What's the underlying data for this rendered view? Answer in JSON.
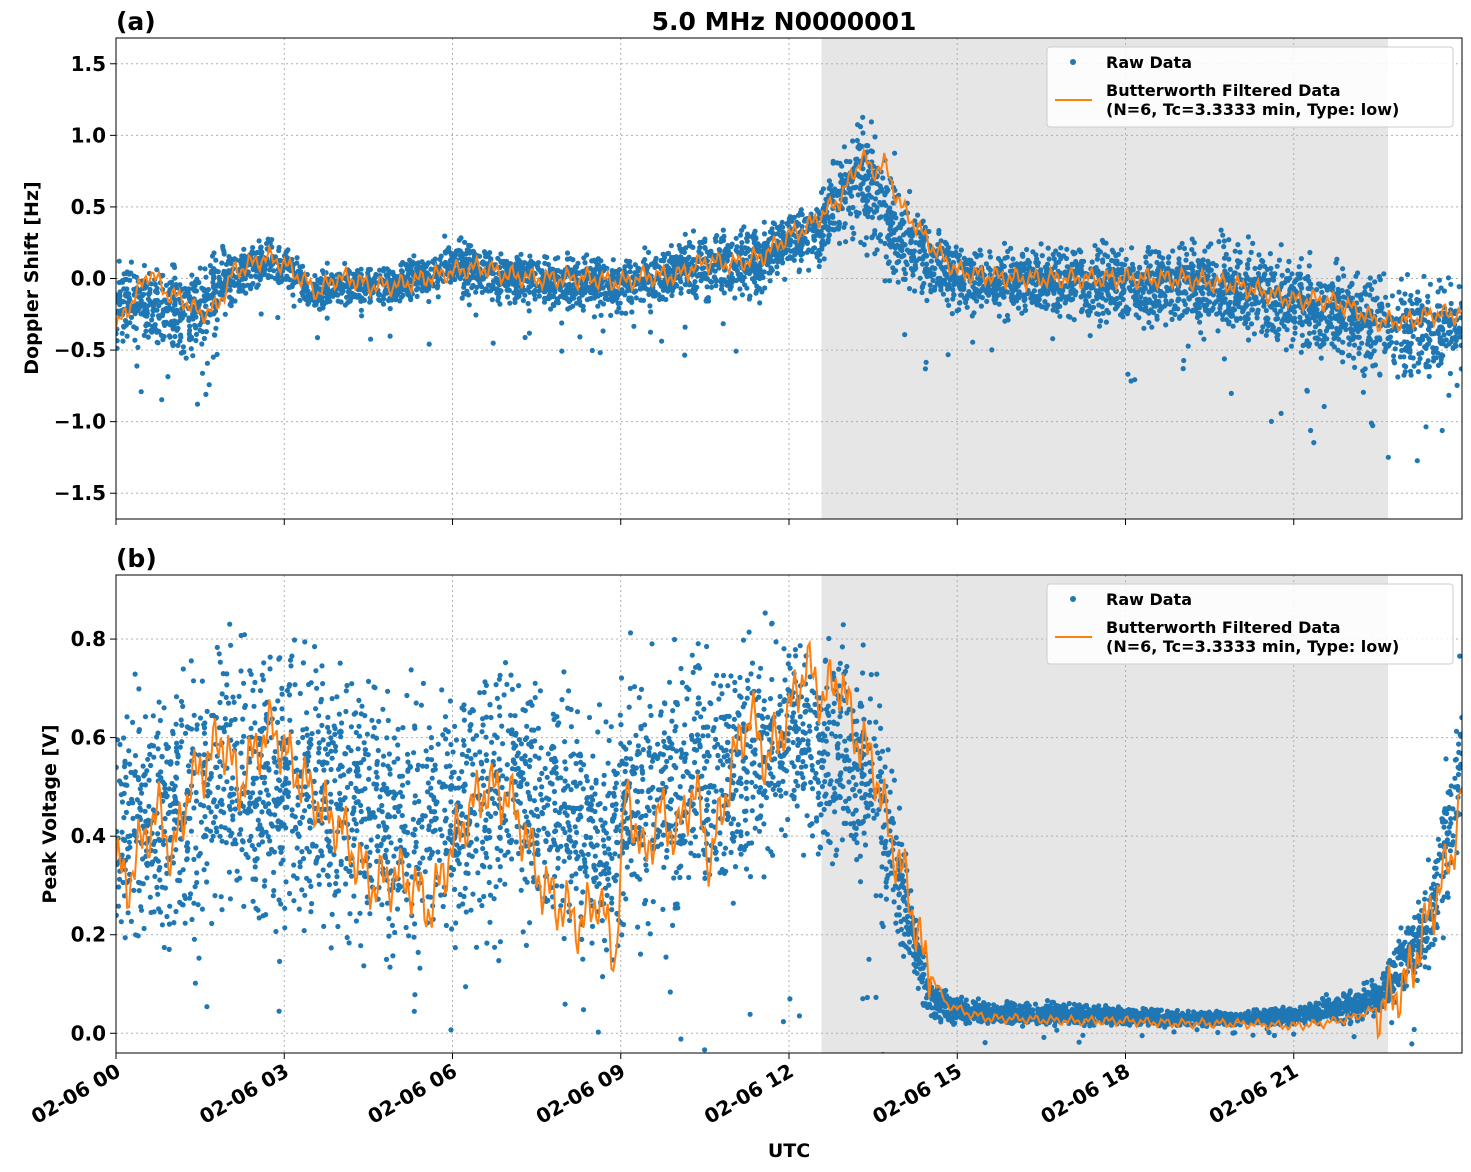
{
  "figure": {
    "title": "5.0 MHz N0000001",
    "xlabel": "UTC"
  },
  "colors": {
    "raw": "#1f77b4",
    "filtered": "#ff7f0e",
    "night_shade": "#e6e6e6",
    "grid": "#b0b0b0"
  },
  "chart_data": [
    {
      "type": "scatter",
      "panel_label": "(a)",
      "title": "5.0 MHz N0000001",
      "ylabel": "Doppler Shift [Hz]",
      "xlabel": "",
      "xlim": [
        0,
        24
      ],
      "ylim": [
        -1.68,
        1.68
      ],
      "yticks": [
        1.5,
        1.0,
        0.5,
        0.0,
        -0.5,
        -1.0,
        -1.5
      ],
      "ytick_labels": [
        "1.5",
        "1.0",
        "0.5",
        "0.0",
        "−0.5",
        "−1.0",
        "−1.5"
      ],
      "xticks": [
        0,
        3,
        6,
        9,
        12,
        15,
        18,
        21
      ],
      "grid": true,
      "legend_position": "top-right",
      "shaded_interval_hours": [
        12.58,
        22.68
      ],
      "series": [
        {
          "name": "Raw Data",
          "kind": "scatter",
          "band_hours": [
            0,
            0.5,
            1,
            1.5,
            2,
            2.5,
            3,
            3.5,
            4,
            5,
            6,
            7,
            8,
            9,
            10,
            11,
            11.5,
            12,
            12.5,
            13,
            13.3,
            13.5,
            14,
            14.5,
            15,
            16,
            17,
            18,
            19,
            20,
            21,
            22,
            23,
            24
          ],
          "band_low": [
            -0.6,
            -0.5,
            -0.7,
            -0.6,
            -0.3,
            -0.1,
            -0.1,
            -0.3,
            -0.25,
            -0.25,
            -0.2,
            -0.25,
            -0.3,
            -0.3,
            -0.25,
            -0.25,
            -0.2,
            0.0,
            0.0,
            0.2,
            0.1,
            0.0,
            -0.2,
            -0.3,
            -0.3,
            -0.35,
            -0.35,
            -0.4,
            -0.4,
            -0.55,
            -0.65,
            -0.75,
            -0.85,
            -0.8
          ],
          "band_high": [
            0.2,
            0.15,
            0.2,
            0.15,
            0.3,
            0.3,
            0.3,
            0.1,
            0.15,
            0.15,
            0.35,
            0.25,
            0.25,
            0.2,
            0.35,
            0.45,
            0.45,
            0.5,
            0.65,
            1.1,
            1.3,
            1.2,
            0.8,
            0.5,
            0.3,
            0.3,
            0.3,
            0.3,
            0.35,
            0.4,
            0.3,
            0.2,
            0.1,
            0.1
          ]
        },
        {
          "name": "Butterworth Filtered Data\n(N=6, Tc=3.3333 min, Type: low)",
          "kind": "line",
          "x": [
            0,
            0.3,
            0.6,
            0.9,
            1.2,
            1.5,
            1.8,
            2.1,
            2.4,
            2.7,
            3.0,
            3.3,
            3.6,
            3.9,
            4.2,
            4.5,
            5.0,
            5.5,
            6.0,
            6.5,
            7.0,
            7.5,
            8.0,
            8.5,
            9.0,
            9.5,
            10.0,
            10.5,
            11.0,
            11.5,
            12.0,
            12.3,
            12.6,
            12.9,
            13.1,
            13.3,
            13.5,
            13.7,
            14.0,
            14.3,
            14.6,
            15.0,
            15.5,
            16.0,
            17.0,
            18.0,
            19.0,
            20.0,
            20.5,
            21.0,
            21.5,
            22.0,
            22.5,
            23.0,
            23.5,
            24.0
          ],
          "y": [
            -0.35,
            -0.15,
            0.05,
            -0.1,
            -0.15,
            -0.25,
            -0.2,
            0.05,
            0.1,
            0.15,
            0.1,
            0.0,
            -0.1,
            0.0,
            0.0,
            -0.05,
            -0.05,
            0.0,
            0.05,
            0.08,
            0.02,
            0.0,
            0.0,
            0.0,
            -0.03,
            0.02,
            0.02,
            0.12,
            0.1,
            0.15,
            0.3,
            0.35,
            0.45,
            0.55,
            0.7,
            0.85,
            0.75,
            0.8,
            0.5,
            0.35,
            0.2,
            0.05,
            0.02,
            0.0,
            0.0,
            0.0,
            0.0,
            -0.05,
            -0.1,
            -0.15,
            -0.15,
            -0.2,
            -0.3,
            -0.3,
            -0.25,
            -0.25
          ]
        }
      ]
    },
    {
      "type": "scatter",
      "panel_label": "(b)",
      "title": "",
      "ylabel": "Peak Voltage [V]",
      "xlabel": "UTC",
      "xlim": [
        0,
        24
      ],
      "ylim": [
        -0.04,
        0.93
      ],
      "yticks": [
        0.0,
        0.2,
        0.4,
        0.6,
        0.8
      ],
      "ytick_labels": [
        "0.0",
        "0.2",
        "0.4",
        "0.6",
        "0.8"
      ],
      "xticks": [
        0,
        3,
        6,
        9,
        12,
        15,
        18,
        21
      ],
      "xtick_labels": [
        "02-06 00",
        "02-06 03",
        "02-06 06",
        "02-06 09",
        "02-06 12",
        "02-06 15",
        "02-06 18",
        "02-06 21"
      ],
      "grid": true,
      "legend_position": "top-right",
      "shaded_interval_hours": [
        12.58,
        22.68
      ],
      "series": [
        {
          "name": "Raw Data",
          "kind": "scatter",
          "band_hours": [
            0,
            1,
            2,
            3,
            4,
            5,
            6,
            7,
            8,
            8.8,
            9.0,
            10,
            11,
            12,
            13,
            13.5,
            14,
            14.5,
            15,
            16,
            17,
            18,
            19,
            20,
            21,
            22,
            22.5,
            23,
            23.5,
            24
          ],
          "band_low": [
            0.1,
            0.1,
            0.15,
            0.1,
            0.1,
            0.07,
            0.1,
            0.12,
            0.1,
            0.04,
            0.1,
            0.1,
            0.2,
            0.3,
            0.3,
            0.2,
            0.1,
            0.02,
            0.01,
            0.01,
            0.01,
            0.01,
            0.01,
            0.01,
            0.01,
            0.01,
            0.02,
            0.03,
            0.1,
            0.3
          ],
          "band_high": [
            0.75,
            0.8,
            0.87,
            0.87,
            0.86,
            0.75,
            0.8,
            0.85,
            0.8,
            0.7,
            0.85,
            0.88,
            0.88,
            0.88,
            0.88,
            0.8,
            0.5,
            0.12,
            0.08,
            0.07,
            0.07,
            0.06,
            0.05,
            0.05,
            0.06,
            0.1,
            0.12,
            0.25,
            0.4,
            0.85
          ]
        },
        {
          "name": "Butterworth Filtered Data\n(N=6, Tc=3.3333 min, Type: low)",
          "kind": "line",
          "x": [
            0,
            0.2,
            0.5,
            0.8,
            1.0,
            1.3,
            1.6,
            1.9,
            2.2,
            2.5,
            2.8,
            3.1,
            3.4,
            3.7,
            4.0,
            4.3,
            4.6,
            5.0,
            5.3,
            5.6,
            6.0,
            6.3,
            6.6,
            7.0,
            7.3,
            7.6,
            8.0,
            8.3,
            8.6,
            8.9,
            9.1,
            9.4,
            9.7,
            10.0,
            10.3,
            10.6,
            11.0,
            11.3,
            11.6,
            12.0,
            12.3,
            12.6,
            12.9,
            13.2,
            13.5,
            13.8,
            14.1,
            14.4,
            14.8,
            15.2,
            15.6,
            16.0,
            17.0,
            18.0,
            19.0,
            20.0,
            21.0,
            21.5,
            22.0,
            22.5,
            23.0,
            23.3,
            23.6,
            23.8,
            24.0
          ],
          "y": [
            0.35,
            0.3,
            0.4,
            0.45,
            0.35,
            0.5,
            0.55,
            0.6,
            0.5,
            0.58,
            0.62,
            0.55,
            0.5,
            0.45,
            0.42,
            0.35,
            0.3,
            0.32,
            0.3,
            0.25,
            0.38,
            0.45,
            0.5,
            0.48,
            0.4,
            0.3,
            0.25,
            0.22,
            0.28,
            0.15,
            0.5,
            0.35,
            0.45,
            0.4,
            0.5,
            0.35,
            0.55,
            0.65,
            0.55,
            0.65,
            0.75,
            0.68,
            0.72,
            0.6,
            0.55,
            0.4,
            0.3,
            0.15,
            0.06,
            0.04,
            0.03,
            0.03,
            0.025,
            0.025,
            0.02,
            0.02,
            0.015,
            0.02,
            0.03,
            0.05,
            0.1,
            0.2,
            0.3,
            0.35,
            0.5
          ]
        }
      ]
    }
  ]
}
